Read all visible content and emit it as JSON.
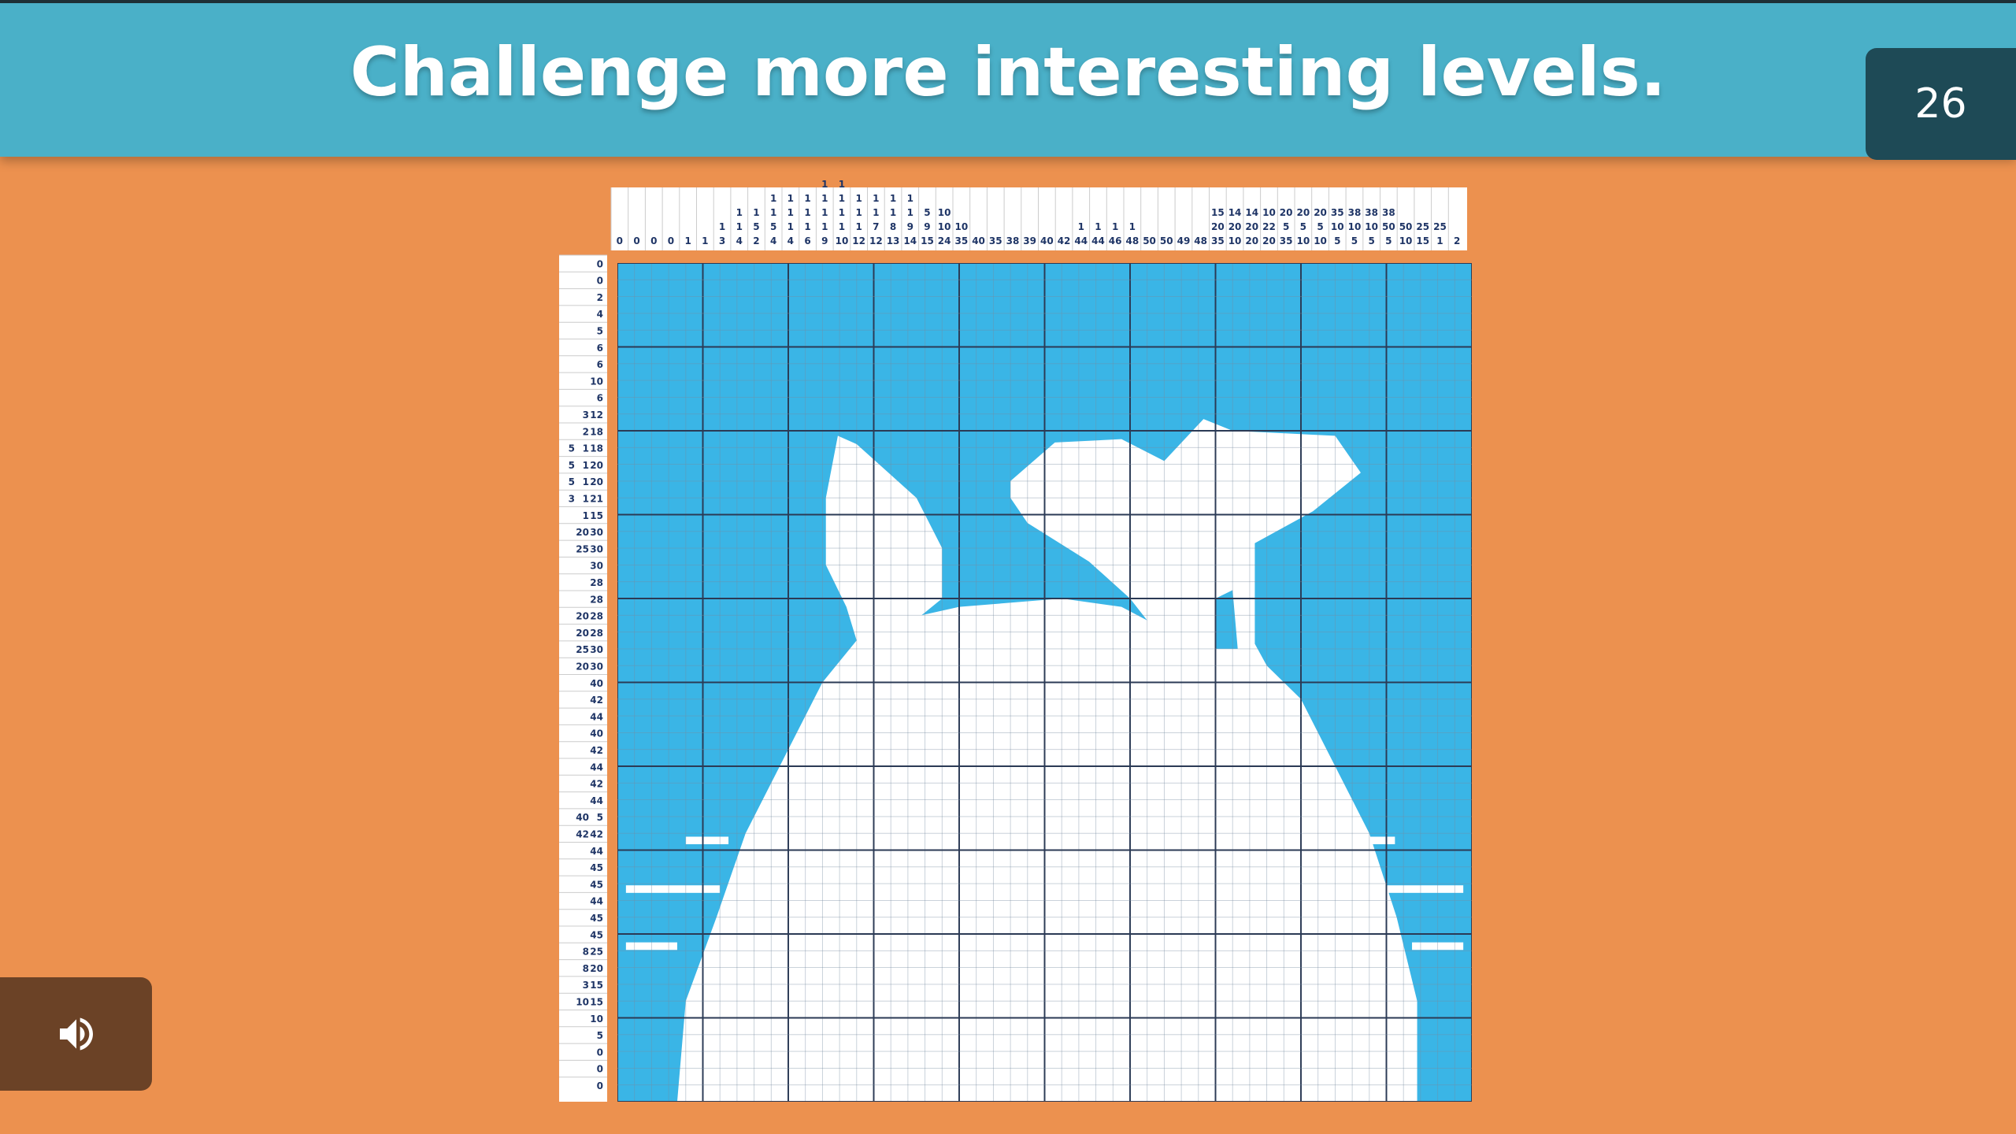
{
  "header": {
    "title": "Challenge more interesting levels."
  },
  "level": 26,
  "puzzle": {
    "column_clues": [
      [
        0
      ],
      [
        0
      ],
      [
        0
      ],
      [
        0
      ],
      [
        1
      ],
      [
        1
      ],
      [
        1,
        3
      ],
      [
        1,
        1,
        4
      ],
      [
        1,
        5,
        2
      ],
      [
        1,
        1,
        5,
        4
      ],
      [
        1,
        1,
        1,
        4
      ],
      [
        1,
        1,
        1,
        6
      ],
      [
        1,
        1,
        1,
        1,
        9
      ],
      [
        1,
        1,
        1,
        1,
        10
      ],
      [
        1,
        1,
        1,
        12
      ],
      [
        1,
        1,
        7,
        12
      ],
      [
        1,
        1,
        8,
        13
      ],
      [
        1,
        1,
        9,
        14
      ],
      [
        5,
        9,
        15
      ],
      [
        10,
        10,
        24
      ],
      [
        10,
        35
      ],
      [
        40
      ],
      [
        35
      ],
      [
        38
      ],
      [
        39
      ],
      [
        40
      ],
      [
        42
      ],
      [
        1,
        44
      ],
      [
        1,
        44
      ],
      [
        1,
        46
      ],
      [
        1,
        48
      ],
      [
        50
      ],
      [
        50
      ],
      [
        49
      ],
      [
        48
      ],
      [
        15,
        20,
        35
      ],
      [
        14,
        20,
        10
      ],
      [
        14,
        20,
        20
      ],
      [
        10,
        22,
        20
      ],
      [
        20,
        5,
        35
      ],
      [
        20,
        5,
        10
      ],
      [
        20,
        5,
        10
      ],
      [
        35,
        10,
        5
      ],
      [
        38,
        10,
        5
      ],
      [
        38,
        10,
        5
      ],
      [
        38,
        50,
        5
      ],
      [
        50,
        10
      ],
      [
        25,
        15
      ],
      [
        25,
        1
      ],
      [
        2
      ]
    ],
    "row_clues": [
      [
        0
      ],
      [
        0
      ],
      [
        2
      ],
      [
        4
      ],
      [
        5
      ],
      [
        6
      ],
      [
        6
      ],
      [
        10
      ],
      [
        6
      ],
      [
        3,
        12
      ],
      [
        2,
        18
      ],
      [
        5,
        1,
        18
      ],
      [
        5,
        1,
        20
      ],
      [
        5,
        1,
        20
      ],
      [
        3,
        1,
        21
      ],
      [
        1,
        15
      ],
      [
        20,
        30
      ],
      [
        25,
        30
      ],
      [
        30
      ],
      [
        28
      ],
      [
        28
      ],
      [
        20,
        28
      ],
      [
        20,
        28
      ],
      [
        25,
        30
      ],
      [
        20,
        30
      ],
      [
        40
      ],
      [
        42
      ],
      [
        44
      ],
      [
        40
      ],
      [
        42
      ],
      [
        44
      ],
      [
        42
      ],
      [
        44
      ],
      [
        40,
        5
      ],
      [
        42,
        42
      ],
      [
        44
      ],
      [
        45
      ],
      [
        45
      ],
      [
        44
      ],
      [
        45
      ],
      [
        45
      ],
      [
        8,
        25
      ],
      [
        8,
        20
      ],
      [
        3,
        15
      ],
      [
        10,
        15
      ],
      [
        10
      ],
      [
        5
      ],
      [
        0
      ],
      [
        0
      ],
      [
        0
      ]
    ]
  }
}
